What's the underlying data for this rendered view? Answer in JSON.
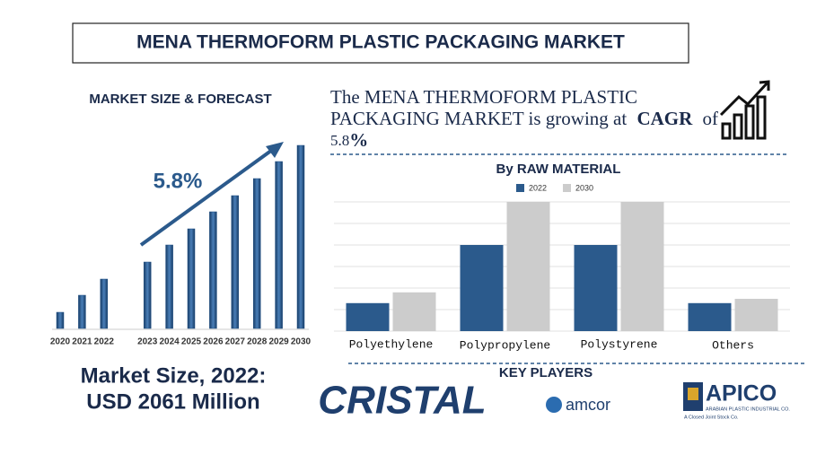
{
  "title": "MENA THERMOFORM PLASTIC PACKAGING MARKET",
  "headline": {
    "line1": "The MENA THERMOFORM PLASTIC",
    "line2": "PACKAGING MARKET is growing at",
    "cagr": "CAGR",
    "of": "of",
    "rate": "5.8",
    "pct": "%"
  },
  "chart_data": [
    {
      "type": "bar",
      "title": "MARKET SIZE & FORECAST",
      "annotation": "5.8%",
      "categories": [
        "2020",
        "2021",
        "2022",
        "2023",
        "2024",
        "2025",
        "2026",
        "2027",
        "2028",
        "2029",
        "2030"
      ],
      "values": [
        18,
        37,
        55,
        74,
        93,
        111,
        130,
        148,
        167,
        186,
        204
      ],
      "color": "#1f4e82",
      "ylim": [
        0,
        210
      ]
    },
    {
      "type": "grouped_bar",
      "title": "By RAW MATERIAL",
      "categories": [
        "Polyethylene",
        "Polypropylene",
        "Polystyrene",
        "Others"
      ],
      "series": [
        {
          "name": "2022",
          "color": "#2b5a8c",
          "values": [
            1.3,
            4,
            4,
            1.3
          ]
        },
        {
          "name": "2030",
          "color": "#cccccc",
          "values": [
            1.8,
            6,
            6,
            1.5
          ]
        }
      ],
      "ylim": [
        0,
        6
      ],
      "yticks": [
        0,
        1,
        2,
        3,
        4,
        5,
        6
      ],
      "grid": true,
      "legend": "top"
    }
  ],
  "market_size": {
    "line1": "Market Size, 2022:",
    "line2": "USD 2061 Million"
  },
  "key_players": {
    "title": "KEY PLAYERS",
    "players": [
      "CRISTAL",
      "amcor",
      "APICO"
    ],
    "apico_sub1": "ARABIAN PLASTIC INDUSTRIAL CO.",
    "apico_sub2": "A Closed Joint Stock Co."
  }
}
